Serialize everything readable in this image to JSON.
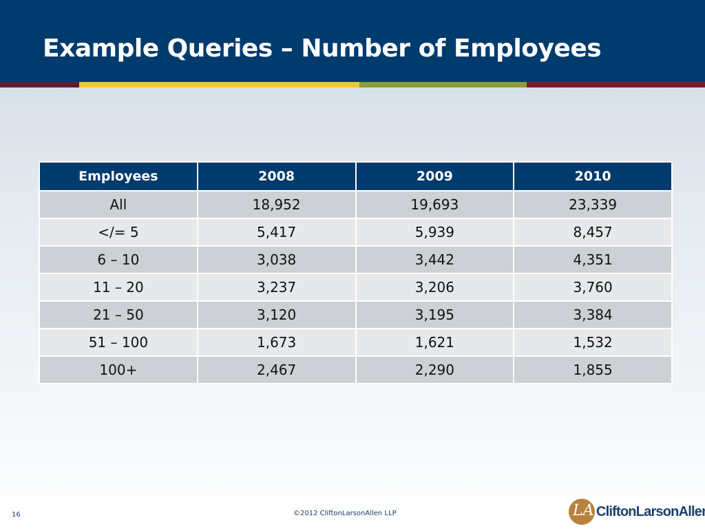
{
  "slide": {
    "title": "Example Queries – Number of Employees",
    "page_number": "16",
    "copyright": "©2012 CliftonLarsonAllen LLP",
    "logo_text": "CliftonLarsonAllen",
    "logo_mark": "LA"
  },
  "colors": {
    "header": "#003b6e",
    "stripe_gold": "#ecc84a",
    "stripe_olive": "#8e9a3a",
    "stripe_maroon": "#7a1d28",
    "row_dark": "#cdd0d4",
    "row_light": "#e6e8ea"
  },
  "table": {
    "headers": [
      "Employees",
      "2008",
      "2009",
      "2010"
    ],
    "rows": [
      [
        "All",
        "18,952",
        "19,693",
        "23,339"
      ],
      [
        "</= 5",
        "5,417",
        "5,939",
        "8,457"
      ],
      [
        "6 – 10",
        "3,038",
        "3,442",
        "4,351"
      ],
      [
        "11 – 20",
        "3,237",
        "3,206",
        "3,760"
      ],
      [
        "21 – 50",
        "3,120",
        "3,195",
        "3,384"
      ],
      [
        "51 – 100",
        "1,673",
        "1,621",
        "1,532"
      ],
      [
        "100+",
        "2,467",
        "2,290",
        "1,855"
      ]
    ]
  }
}
